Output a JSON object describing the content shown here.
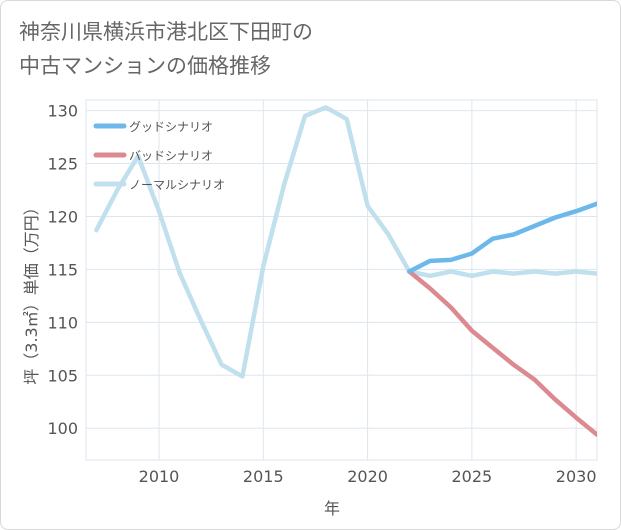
{
  "title": {
    "line1": "神奈川県横浜市港北区下田町の",
    "line2": "中古マンションの価格推移"
  },
  "colors": {
    "good": "#6cb8ea",
    "bad": "#dc8a90",
    "normal": "#bfe0ec",
    "grid": "#dde6ee"
  },
  "chart_data": {
    "type": "line",
    "xlabel": "年",
    "ylabel": "坪（3.3㎡）単価（万円）",
    "xlim": [
      2006.5,
      2031
    ],
    "ylim": [
      97,
      131
    ],
    "xticks": [
      2010,
      2015,
      2020,
      2025,
      2030
    ],
    "yticks": [
      100,
      105,
      110,
      115,
      120,
      125,
      130
    ],
    "legend_position": "top-left",
    "series": [
      {
        "name": "グッドシナリオ",
        "color": "#6cb8ea",
        "x": [
          2022,
          2023,
          2024,
          2025,
          2026,
          2027,
          2028,
          2029,
          2030,
          2031
        ],
        "y": [
          114.8,
          115.8,
          115.9,
          116.5,
          117.9,
          118.3,
          119.1,
          119.9,
          120.5,
          121.2
        ]
      },
      {
        "name": "バッドシナリオ",
        "color": "#dc8a90",
        "x": [
          2022,
          2023,
          2024,
          2025,
          2026,
          2027,
          2028,
          2029,
          2030,
          2031
        ],
        "y": [
          114.8,
          113.2,
          111.4,
          109.2,
          107.6,
          106.0,
          104.6,
          102.7,
          101.0,
          99.4
        ]
      },
      {
        "name": "ノーマルシナリオ",
        "color": "#bfe0ec",
        "x": [
          2007,
          2008,
          2009,
          2010,
          2011,
          2012,
          2013,
          2014,
          2015,
          2016,
          2017,
          2018,
          2019,
          2020,
          2021,
          2022,
          2023,
          2024,
          2025,
          2026,
          2027,
          2028,
          2029,
          2030,
          2031
        ],
        "y": [
          118.7,
          122.5,
          125.7,
          120.5,
          114.6,
          110.2,
          106.0,
          104.9,
          115.3,
          123.0,
          129.5,
          130.3,
          129.2,
          121.0,
          118.3,
          114.8,
          114.4,
          114.8,
          114.4,
          114.8,
          114.6,
          114.8,
          114.6,
          114.8,
          114.6
        ]
      }
    ]
  }
}
